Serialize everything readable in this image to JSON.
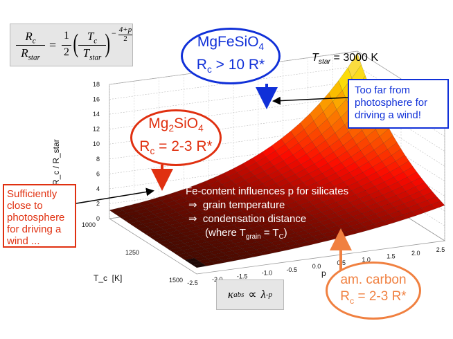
{
  "chart_data": {
    "type": "surface3d",
    "title": "",
    "xlabel": "T_c  [K]",
    "ylabel": "p",
    "zlabel": "R_c / R_star",
    "x_ticks": [
      1000,
      1250,
      1500
    ],
    "y_ticks": [
      "-2.5",
      "-2.0",
      "-1.5",
      "-1.0",
      "-0.5",
      "0.0",
      "0.5",
      "1.0",
      "1.5",
      "2.0",
      "2.5"
    ],
    "z_ticks": [
      0,
      2,
      4,
      6,
      8,
      10,
      12,
      14,
      16,
      18
    ],
    "xlim": [
      1000,
      1500
    ],
    "ylim": [
      -2.5,
      2.5
    ],
    "zlim": [
      0,
      18
    ],
    "t_star": 3000,
    "colormap": "hot (black-red-orange-yellow)"
  },
  "formula": {
    "lhs_num": "R",
    "lhs_num_sub": "c",
    "lhs_den": "R",
    "lhs_den_sub": "star",
    "eq": "=",
    "half_num": "1",
    "half_den": "2",
    "t_num": "T",
    "t_num_sub": "c",
    "t_den": "T",
    "t_den_sub": "star",
    "exp_sign": "−",
    "exp_num": "4+p",
    "exp_den": "2"
  },
  "tstar_label": {
    "t": "T",
    "sub": "star",
    "rest": " = 3000 K"
  },
  "kappa": {
    "kappa": "κ",
    "sub": "abs",
    "prop": "∝",
    "lambda": "λ",
    "exp": "-p"
  },
  "annotations": {
    "mgfe": {
      "l1": "MgFeSiO",
      "l1_sub": "4",
      "l2a": "R",
      "l2_sub": "c",
      "l2b": " > 10 R*"
    },
    "mg2": {
      "l1a": "Mg",
      "l1_sub": "2",
      "l1b": "SiO",
      "l1_sub2": "4",
      "l2a": "R",
      "l2_sub": "c",
      "l2b": " = 2-3 R*"
    },
    "carbon": {
      "l1": "am. carbon",
      "l2a": "R",
      "l2_sub": "c",
      "l2b": " = 2-3 R*"
    },
    "too_far": {
      "l1": "Too far from",
      "l2": "photosphere for",
      "l3": "driving a wind!"
    },
    "close": {
      "l1": "Sufficiently",
      "l2": "close to",
      "l3": "photosphere",
      "l4": "for driving a",
      "l5": "wind ..."
    },
    "fe": {
      "l1": "Fe-content influences p for silicates",
      "arrow": "⇒",
      "l2": "grain temperature",
      "l3": "condensation distance",
      "l4a": "(where T",
      "l4_sub": "grain",
      "l4b": " = T",
      "l4_sub2": "C",
      "l4c": ")"
    }
  },
  "colors": {
    "blue": "#1030d8",
    "red": "#e03010",
    "orange": "#f08040"
  }
}
